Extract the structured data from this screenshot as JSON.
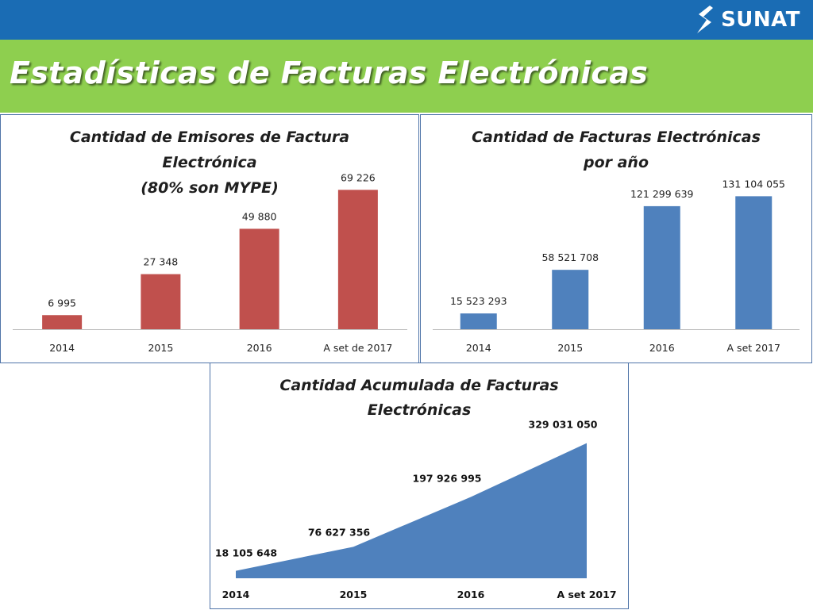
{
  "header": {
    "title": "Estadísticas de Facturas Electrónicas",
    "logo_text": "SUNAT",
    "logo_icon": "sunat-s-icon"
  },
  "colors": {
    "top_bar": "#1a6cb4",
    "title_bar": "#8ecf4f",
    "emisores_bar": "#c0504d",
    "facturas_bar": "#4f81bd",
    "acumulada_area": "#4f81bd",
    "panel_border": "#4f74a8"
  },
  "chart_data": [
    {
      "type": "bar",
      "title_lines": [
        "Cantidad de Emisores de Factura",
        "Electrónica",
        "(80% son MYPE)"
      ],
      "categories": [
        "2014",
        "2015",
        "2016",
        "A set de 2017"
      ],
      "values": [
        6995,
        27348,
        49880,
        69226
      ],
      "value_labels": [
        "6 995",
        "27 348",
        "49 880",
        "69 226"
      ],
      "ylim": [
        0,
        80000
      ],
      "grid": false,
      "legend": "none"
    },
    {
      "type": "bar",
      "title_lines": [
        "Cantidad de Facturas Electrónicas",
        "por año"
      ],
      "categories": [
        "2014",
        "2015",
        "2016",
        "A set 2017"
      ],
      "values": [
        15523293,
        58521708,
        121299639,
        131104055
      ],
      "value_labels": [
        "15 523 293",
        "58 521 708",
        "121 299 639",
        "131 104 055"
      ],
      "ylim": [
        0,
        140000000
      ],
      "grid": false,
      "legend": "none"
    },
    {
      "type": "area",
      "title_lines": [
        "Cantidad  Acumulada de Facturas",
        "Electrónicas"
      ],
      "categories": [
        "2014",
        "2015",
        "2016",
        "A set 2017"
      ],
      "values": [
        18105648,
        76627356,
        197926995,
        329031050
      ],
      "value_labels": [
        "18 105 648",
        "76 627 356",
        "197 926 995",
        "329 031 050"
      ],
      "ylim": [
        0,
        340000000
      ],
      "grid": false,
      "legend": "none"
    }
  ]
}
